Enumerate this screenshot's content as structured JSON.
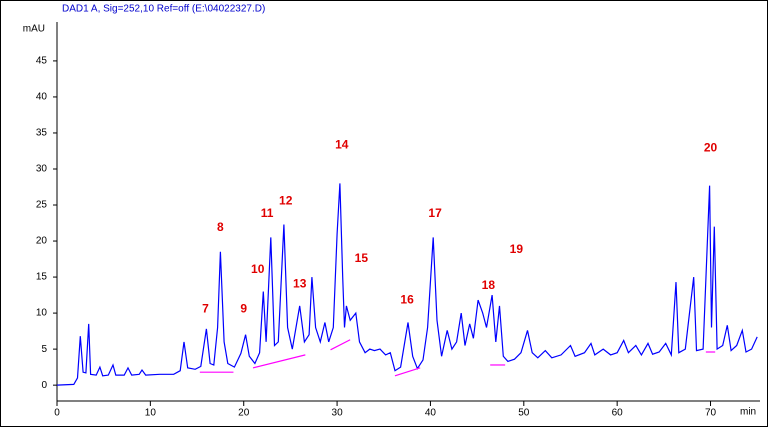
{
  "chart_data": {
    "type": "line",
    "title": "DAD1 A, Sig=252,10 Ref=off (E:\\04022327.D)",
    "x_label": "min",
    "y_label": "mAU",
    "xlim": [
      0,
      75.3
    ],
    "ylim": [
      -2.2,
      50.4
    ],
    "xticks": [
      0,
      10,
      20,
      30,
      40,
      50,
      60,
      70
    ],
    "yticks": [
      0,
      5,
      10,
      15,
      20,
      25,
      30,
      35,
      40,
      45
    ],
    "x": [
      0,
      1.8,
      2.2,
      2.5,
      2.8,
      3.1,
      3.4,
      3.6,
      4.2,
      4.6,
      4.9,
      5.5,
      6.0,
      6.3,
      7.2,
      7.6,
      8.0,
      8.8,
      9.1,
      9.5,
      11,
      12.5,
      13.2,
      13.6,
      14,
      14.8,
      15.4,
      16.0,
      16.4,
      16.8,
      17.2,
      17.5,
      17.9,
      18.3,
      19,
      19.7,
      20.2,
      20.6,
      21.2,
      21.7,
      22.1,
      22.4,
      22.9,
      23.3,
      23.7,
      24.3,
      24.7,
      25.2,
      25.6,
      26,
      26.5,
      27,
      27.3,
      27.7,
      28.2,
      28.7,
      29.1,
      29.6,
      30.0,
      30.3,
      30.6,
      30.8,
      31,
      31.4,
      32,
      32.4,
      33,
      33.5,
      34,
      34.6,
      35.2,
      35.7,
      36.2,
      36.8,
      37.6,
      38.1,
      38.6,
      39.2,
      39.7,
      40.3,
      40.7,
      41.2,
      41.8,
      42.3,
      42.8,
      43.3,
      43.7,
      44.2,
      44.6,
      45.1,
      45.6,
      46.0,
      46.6,
      47.0,
      47.4,
      47.8,
      48.3,
      49,
      49.7,
      50.4,
      50.9,
      51.5,
      52.3,
      53,
      54,
      55,
      55.5,
      56.5,
      57.2,
      57.6,
      58.5,
      59.3,
      60,
      60.7,
      61.2,
      62,
      62.6,
      63.3,
      63.8,
      64.5,
      65.2,
      65.8,
      66.3,
      66.6,
      67.3,
      68.2,
      68.5,
      69.2,
      69.9,
      70.1,
      70.4,
      70.7,
      71.3,
      71.8,
      72.2,
      72.8,
      73.4,
      73.8,
      74.4,
      75
    ],
    "series": [
      {
        "color": "#0000ff",
        "values": [
          0,
          0.1,
          1,
          6.8,
          1.8,
          1.7,
          8.5,
          1.5,
          1.4,
          2.5,
          1.3,
          1.4,
          2.8,
          1.4,
          1.4,
          2.4,
          1.4,
          1.5,
          2.1,
          1.4,
          1.5,
          1.5,
          2,
          6,
          2.4,
          2.2,
          2.6,
          7.8,
          3,
          2.8,
          8,
          18.5,
          6,
          3,
          2.5,
          4.4,
          7,
          4,
          3,
          4.5,
          13,
          6,
          20.5,
          5.5,
          6,
          22.3,
          8,
          5,
          8,
          11,
          6,
          7,
          15,
          8,
          6,
          8.7,
          6,
          8,
          21,
          28,
          15,
          8,
          11,
          9,
          10,
          6,
          4.5,
          5,
          4.8,
          5,
          4.2,
          4.5,
          2,
          2.5,
          8.7,
          4,
          2.3,
          3.5,
          8,
          20.5,
          9,
          4,
          7.6,
          5,
          6,
          10,
          5.5,
          8.5,
          6.5,
          11.8,
          10,
          8,
          12.5,
          6,
          11,
          4,
          3.3,
          3.6,
          4.5,
          7.6,
          4.5,
          3.8,
          4.8,
          3.8,
          4.2,
          5.5,
          4,
          4.5,
          5.8,
          4.2,
          5,
          4.2,
          4.5,
          6.2,
          4.5,
          5.5,
          4.2,
          5.8,
          4.3,
          4.6,
          5.8,
          4.2,
          14.3,
          4.5,
          5,
          15,
          4.8,
          5,
          27.7,
          8,
          22,
          5,
          5.5,
          8.3,
          4.8,
          5.5,
          7.6,
          4.6,
          5,
          6.7
        ]
      }
    ],
    "baselines": {
      "color": "#ff00ff",
      "segments": [
        {
          "x": [
            15.3,
            18.9
          ],
          "y": [
            1.8,
            1.8
          ]
        },
        {
          "x": [
            21,
            26.6
          ],
          "y": [
            2.4,
            4.2
          ]
        },
        {
          "x": [
            29.3,
            31.4
          ],
          "y": [
            4.9,
            6.3
          ]
        },
        {
          "x": [
            36.2,
            38.9
          ],
          "y": [
            1.3,
            2.4
          ]
        },
        {
          "x": [
            46.4,
            48
          ],
          "y": [
            2.8,
            2.8
          ]
        },
        {
          "x": [
            69.5,
            70.5
          ],
          "y": [
            4.6,
            4.6
          ]
        }
      ]
    },
    "annotations": [
      {
        "text": "7",
        "x": 15.9,
        "y": 10.5
      },
      {
        "text": "8",
        "x": 17.5,
        "y": 21.8
      },
      {
        "text": "9",
        "x": 20.0,
        "y": 10.5
      },
      {
        "text": "10",
        "x": 21.5,
        "y": 16
      },
      {
        "text": "11",
        "x": 22.5,
        "y": 23.8
      },
      {
        "text": "12",
        "x": 24.5,
        "y": 25.5
      },
      {
        "text": "13",
        "x": 26.0,
        "y": 14
      },
      {
        "text": "14",
        "x": 30.5,
        "y": 33.3
      },
      {
        "text": "15",
        "x": 32.6,
        "y": 17.5
      },
      {
        "text": "16",
        "x": 37.5,
        "y": 11.8
      },
      {
        "text": "17",
        "x": 40.5,
        "y": 23.8
      },
      {
        "text": "18",
        "x": 46.2,
        "y": 13.8
      },
      {
        "text": "19",
        "x": 49.2,
        "y": 18.8
      },
      {
        "text": "20",
        "x": 70.0,
        "y": 32.9
      }
    ]
  }
}
